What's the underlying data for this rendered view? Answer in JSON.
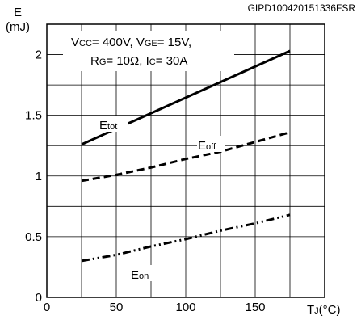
{
  "header": {
    "code": "GIPD100420151336FSR"
  },
  "chart_data": {
    "type": "line",
    "x_axis": {
      "label_main": "T",
      "label_sub": "J",
      "label_unit": "(°C)",
      "range": [
        0,
        200
      ],
      "ticks": [
        0,
        50,
        100,
        150
      ],
      "grid_step": 25
    },
    "y_axis": {
      "label_main": "E",
      "label_unit": "(mJ)",
      "range": [
        0,
        2.25
      ],
      "ticks": [
        "0",
        "0.5",
        "1",
        "1.5",
        "2"
      ],
      "tick_values": [
        0,
        0.5,
        1,
        1.5,
        2
      ],
      "grid_step": 0.25
    },
    "grid": true,
    "conditions": {
      "line1": [
        {
          "text": "V",
          "sub": "CC",
          "rest": "= 400V, "
        },
        {
          "text": "V",
          "sub": "GE",
          "rest": "= 15V,"
        }
      ],
      "line2": [
        {
          "text": "R",
          "sub": "G",
          "rest": "= 10Ω, "
        },
        {
          "text": "I",
          "sub": "C",
          "rest": "= 30A"
        }
      ]
    },
    "series": [
      {
        "name": "Etot",
        "label_main": "E",
        "label_sub": "tot",
        "style": "solid",
        "x": [
          25,
          175
        ],
        "y": [
          1.26,
          2.03
        ]
      },
      {
        "name": "Eoff",
        "label_main": "E",
        "label_sub": "off",
        "style": "dashed",
        "x": [
          25,
          50,
          75,
          100,
          125,
          150,
          175
        ],
        "y": [
          0.96,
          1.01,
          1.07,
          1.14,
          1.2,
          1.28,
          1.36
        ]
      },
      {
        "name": "Eon",
        "label_main": "E",
        "label_sub": "on",
        "style": "dashdotdot",
        "x": [
          25,
          50,
          75,
          100,
          125,
          150,
          175
        ],
        "y": [
          0.3,
          0.35,
          0.42,
          0.48,
          0.55,
          0.61,
          0.68
        ]
      }
    ],
    "colors": {
      "line": "#000000",
      "grid": "#000000",
      "background": "#ffffff"
    }
  }
}
